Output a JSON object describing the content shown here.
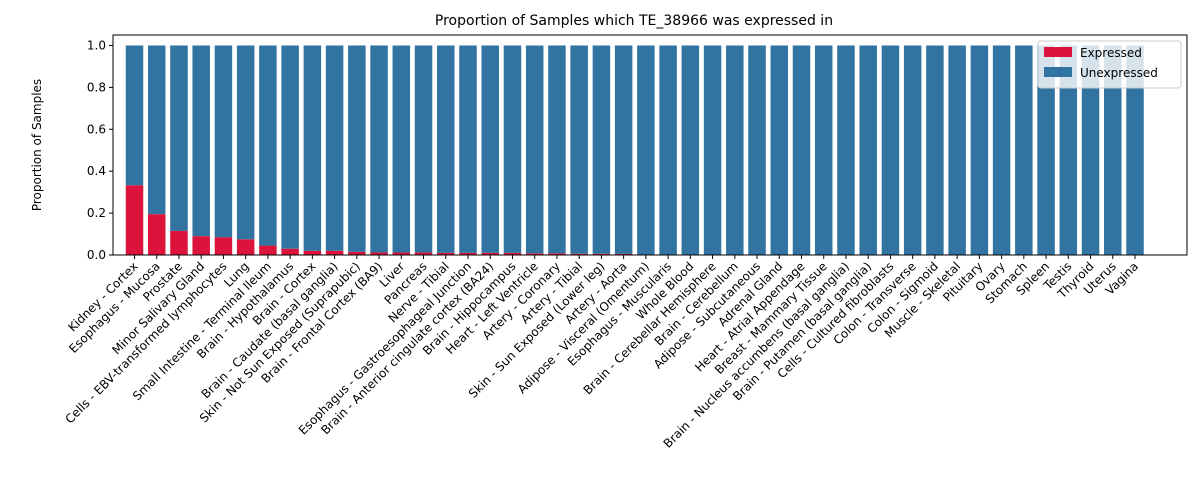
{
  "chart_data": {
    "type": "bar",
    "stacked": true,
    "title": "Proportion of Samples which TE_38966 was expressed in",
    "xlabel": "",
    "ylabel": "Proportion of Samples",
    "ylim": [
      0,
      1.05
    ],
    "yticks": [
      "0.0",
      "0.2",
      "0.4",
      "0.6",
      "0.8",
      "1.0"
    ],
    "grid": false,
    "legend_position": "top-right",
    "categories": [
      "Kidney - Cortex",
      "Esophagus - Mucosa",
      "Prostate",
      "Minor Salivary Gland",
      "Cells - EBV-transformed lymphocytes",
      "Lung",
      "Small Intestine - Terminal Ileum",
      "Brain - Hypothalamus",
      "Brain - Cortex",
      "Brain - Caudate (basal ganglia)",
      "Skin - Not Sun Exposed (Suprapubic)",
      "Brain - Frontal Cortex (BA9)",
      "Liver",
      "Pancreas",
      "Nerve - Tibial",
      "Esophagus - Gastroesophageal Junction",
      "Brain - Anterior cingulate cortex (BA24)",
      "Brain - Hippocampus",
      "Heart - Left Ventricle",
      "Artery - Coronary",
      "Artery - Tibial",
      "Skin - Sun Exposed (Lower leg)",
      "Artery - Aorta",
      "Adipose - Visceral (Omentum)",
      "Esophagus - Muscularis",
      "Whole Blood",
      "Brain - Cerebellar Hemisphere",
      "Brain - Cerebellum",
      "Adipose - Subcutaneous",
      "Adrenal Gland",
      "Heart - Atrial Appendage",
      "Breast - Mammary Tissue",
      "Brain - Nucleus accumbens (basal ganglia)",
      "Brain - Putamen (basal ganglia)",
      "Cells - Cultured fibroblasts",
      "Colon - Transverse",
      "Colon - Sigmoid",
      "Muscle - Skeletal",
      "Pituitary",
      "Ovary",
      "Stomach",
      "Spleen",
      "Testis",
      "Thyroid",
      "Uterus",
      "Vagina"
    ],
    "series": [
      {
        "name": "Expressed",
        "color": "#dc143c",
        "values": [
          0.333,
          0.195,
          0.115,
          0.09,
          0.085,
          0.075,
          0.045,
          0.03,
          0.02,
          0.02,
          0.015,
          0.012,
          0.012,
          0.012,
          0.01,
          0.01,
          0.01,
          0.01,
          0.008,
          0.008,
          0.006,
          0.006,
          0.005,
          0,
          0,
          0,
          0,
          0,
          0,
          0,
          0,
          0,
          0,
          0,
          0,
          0,
          0,
          0,
          0,
          0,
          0,
          0,
          0,
          0,
          0,
          0
        ]
      },
      {
        "name": "Unexpressed",
        "color": "#3274a1",
        "values": [
          0.667,
          0.805,
          0.885,
          0.91,
          0.915,
          0.925,
          0.955,
          0.97,
          0.98,
          0.98,
          0.985,
          0.988,
          0.988,
          0.988,
          0.99,
          0.99,
          0.99,
          0.99,
          0.992,
          0.992,
          0.994,
          0.994,
          0.995,
          1,
          1,
          1,
          1,
          1,
          1,
          1,
          1,
          1,
          1,
          1,
          1,
          1,
          1,
          1,
          1,
          1,
          1,
          1,
          1,
          1,
          1,
          1
        ]
      }
    ]
  }
}
